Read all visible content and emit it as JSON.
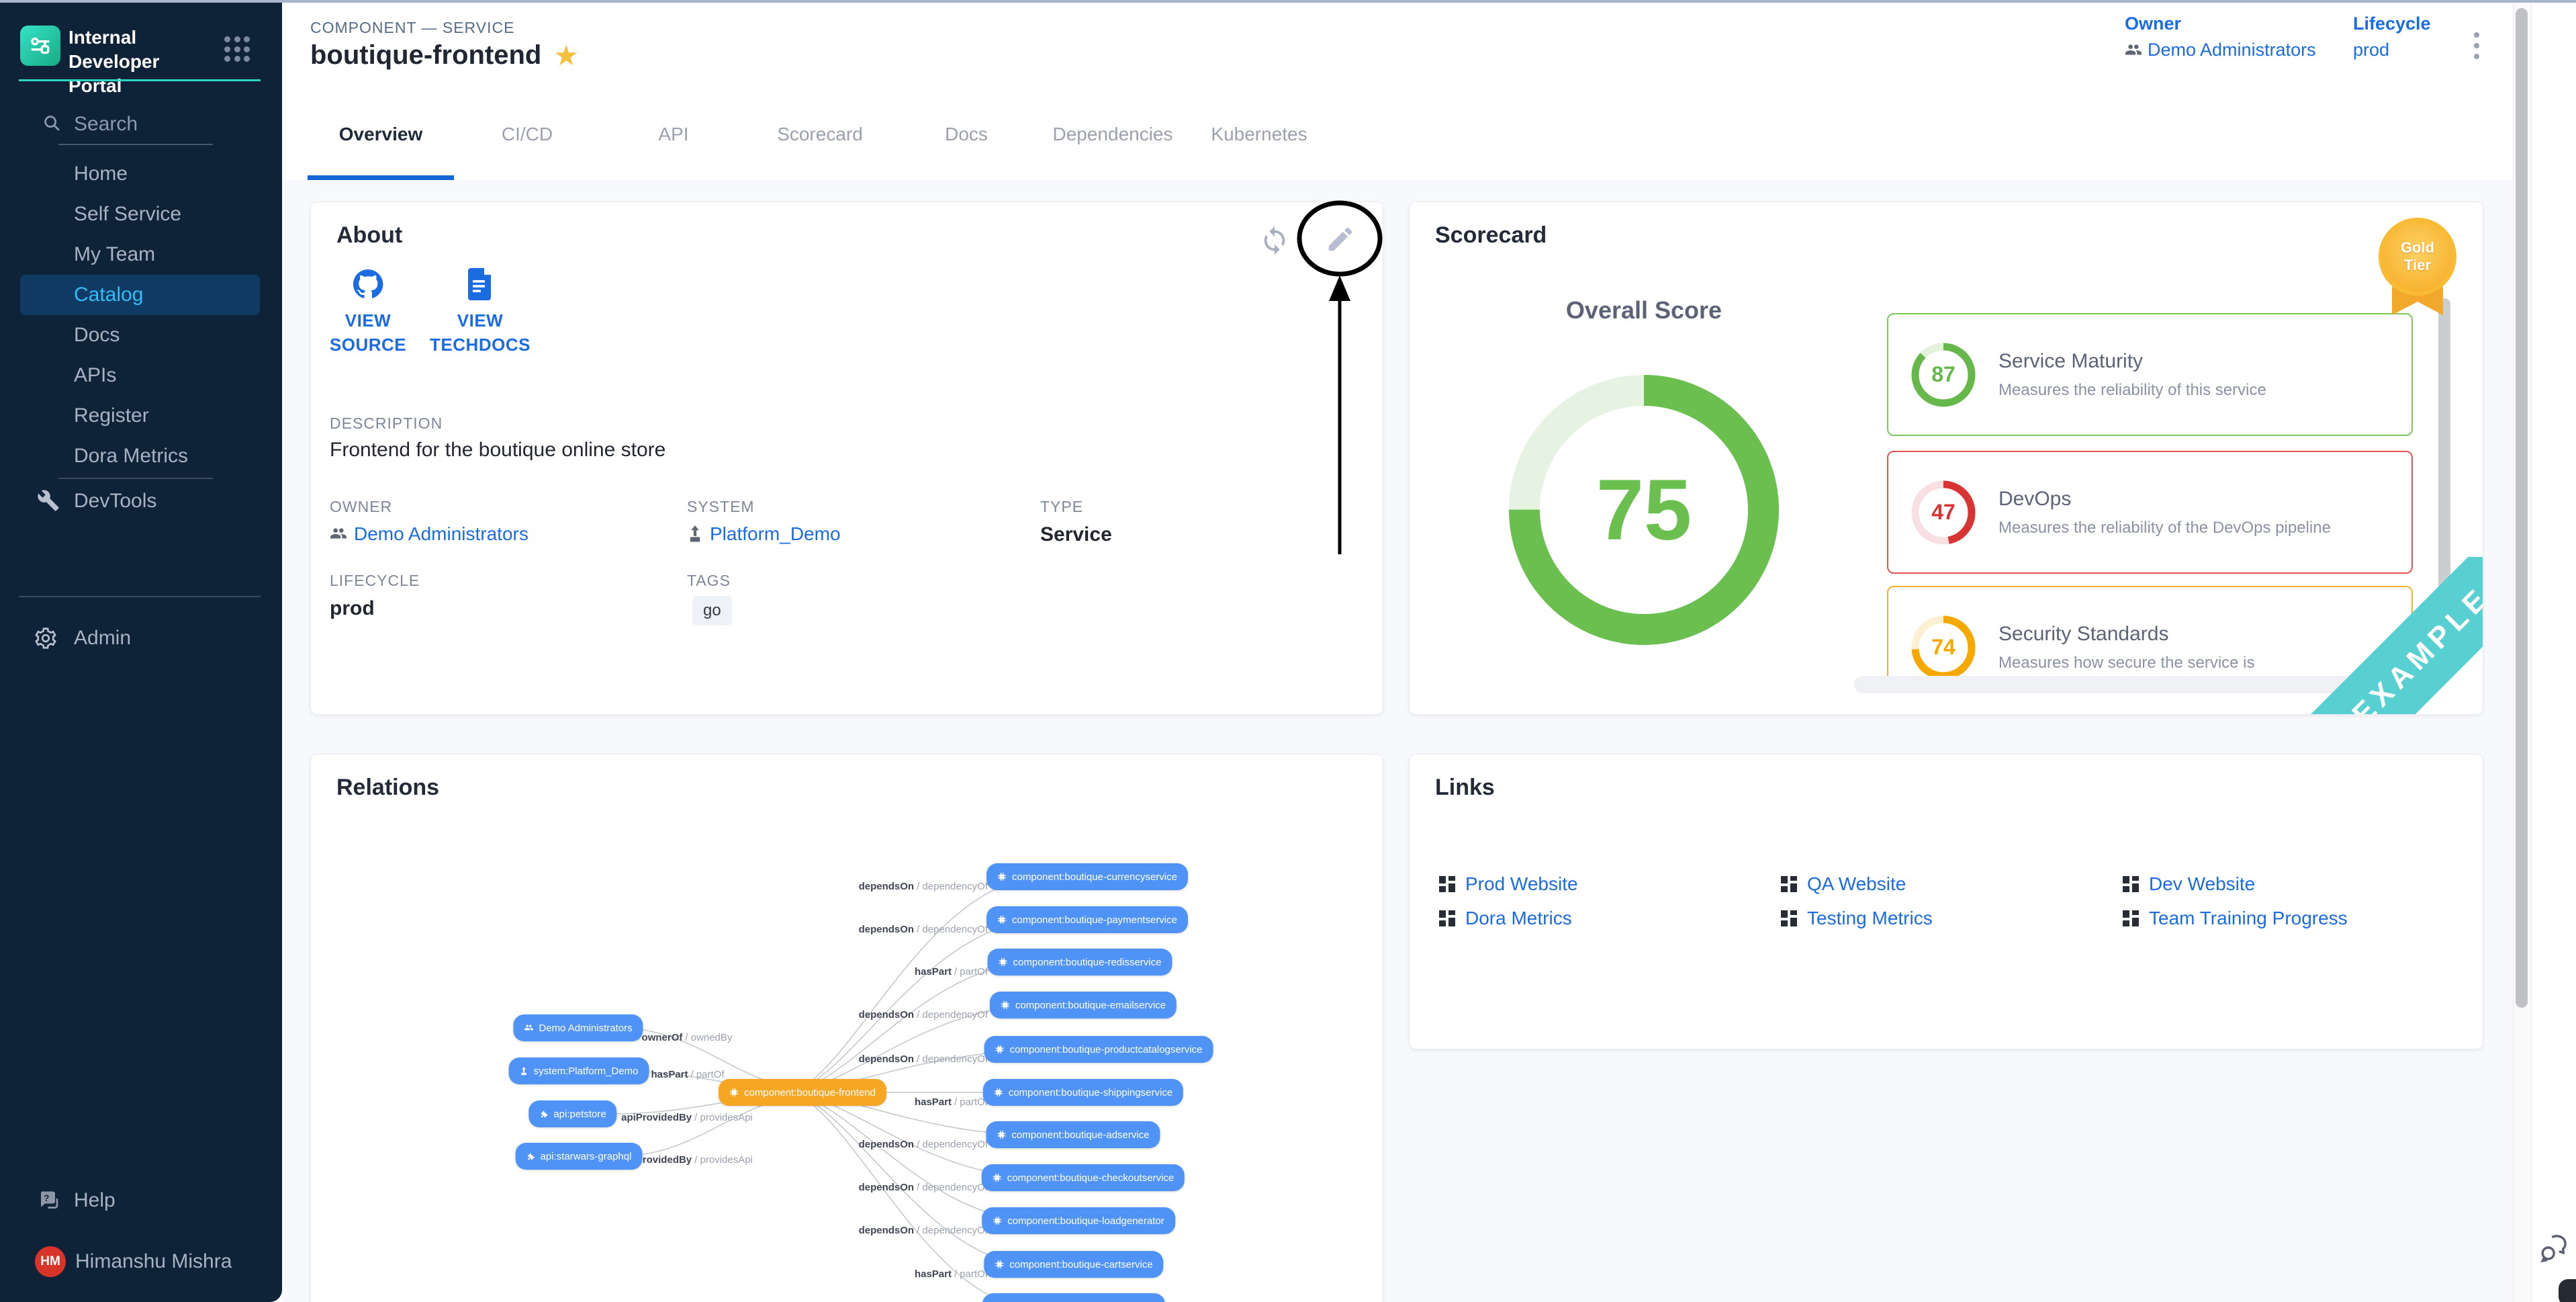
{
  "colors": {
    "link": "#1a6ce0",
    "sidebar_accent": "#2fd5c0",
    "active_tab_underline": "#1565d8",
    "node_blue": "#4f93f6",
    "node_orange": "#f5a623",
    "example_ribbon": "#58cfd1",
    "gold_badge": "#f7b32b"
  },
  "sidebar": {
    "logo_title": "Internal Developer Portal",
    "search_label": "Search",
    "items": [
      "Home",
      "Self Service",
      "My Team",
      "Catalog",
      "Docs",
      "APIs",
      "Register",
      "Dora Metrics"
    ],
    "active_item": "Catalog",
    "devtools_label": "DevTools",
    "admin_label": "Admin",
    "help_label": "Help",
    "user_name": "Himanshu Mishra",
    "user_initials": "HM"
  },
  "header": {
    "eyebrow": "COMPONENT — SERVICE",
    "title": "boutique-frontend",
    "owner_label": "Owner",
    "owner_value": "Demo Administrators",
    "lifecycle_label": "Lifecycle",
    "lifecycle_value": "prod"
  },
  "tabs": {
    "items": [
      "Overview",
      "CI/CD",
      "API",
      "Scorecard",
      "Docs",
      "Dependencies",
      "Kubernetes"
    ],
    "active": "Overview"
  },
  "about": {
    "title": "About",
    "actions": [
      {
        "label": "VIEW SOURCE"
      },
      {
        "label": "VIEW TECHDOCS"
      }
    ],
    "description_label": "DESCRIPTION",
    "description": "Frontend for the boutique online store",
    "owner_label": "OWNER",
    "owner": "Demo Administrators",
    "system_label": "SYSTEM",
    "system": "Platform_Demo",
    "type_label": "TYPE",
    "type": "Service",
    "lifecycle_label": "LIFECYCLE",
    "lifecycle": "prod",
    "tags_label": "TAGS",
    "tags": [
      "go"
    ]
  },
  "scorecard": {
    "title": "Scorecard",
    "tier_line1": "Gold",
    "tier_line2": "Tier",
    "overall_label": "Overall Score",
    "overall_score": 75,
    "overall_color": "#6abf4f",
    "overall_tint": "#e7f3e2",
    "example_ribbon": "EXAMPLE",
    "scores": [
      {
        "value": 87,
        "name": "Service Maturity",
        "desc": "Measures the reliability of this service",
        "color": "#67b84b",
        "tint": "#e3f1dd",
        "border": "#7cc95f"
      },
      {
        "value": 47,
        "name": "DevOps",
        "desc": "Measures the reliability of the DevOps pipeline",
        "color": "#d93434",
        "tint": "#f8dfe1",
        "border": "#e05555"
      },
      {
        "value": 74,
        "name": "Security Standards",
        "desc": "Measures how secure the service is",
        "color": "#f5a800",
        "tint": "#fcf0d2",
        "border": "#f2b32a"
      }
    ]
  },
  "relations": {
    "title": "Relations",
    "center_node": "component:boutique-frontend",
    "left_nodes": [
      {
        "label": "Demo Administrators",
        "rel": "ownerOf",
        "inv": "ownedBy"
      },
      {
        "label": "system:Platform_Demo",
        "rel": "hasPart",
        "inv": "partOf"
      },
      {
        "label": "api:petstore",
        "rel": "apiProvidedBy",
        "inv": "providesApi"
      },
      {
        "label": "api:starwars-graphql",
        "rel": "apiProvidedBy",
        "inv": "providesApi"
      }
    ],
    "right_nodes": [
      {
        "label": "component:boutique-currencyservice",
        "rel": "dependsOn",
        "inv": "dependencyOf"
      },
      {
        "label": "component:boutique-paymentservice",
        "rel": "dependsOn",
        "inv": "dependencyOf"
      },
      {
        "label": "component:boutique-redisservice",
        "rel": "hasPart",
        "inv": "partOf"
      },
      {
        "label": "component:boutique-emailservice",
        "rel": "dependsOn",
        "inv": "dependencyOf"
      },
      {
        "label": "component:boutique-productcatalogservice",
        "rel": "dependsOn",
        "inv": "dependencyOf"
      },
      {
        "label": "component:boutique-shippingservice",
        "rel": "hasPart",
        "inv": "partOf"
      },
      {
        "label": "component:boutique-adservice",
        "rel": "dependsOn",
        "inv": "dependencyOf"
      },
      {
        "label": "component:boutique-checkoutservice",
        "rel": "dependsOn",
        "inv": "dependencyOf"
      },
      {
        "label": "component:boutique-loadgenerator",
        "rel": "dependsOn",
        "inv": "dependencyOf"
      },
      {
        "label": "component:boutique-cartservice",
        "rel": "hasPart",
        "inv": "partOf"
      },
      {
        "label": "",
        "rel": "",
        "inv": ""
      }
    ]
  },
  "links": {
    "title": "Links",
    "items": [
      "Prod Website",
      "QA Website",
      "Dev Website",
      "Dora Metrics",
      "Testing Metrics",
      "Team Training Progress"
    ]
  }
}
